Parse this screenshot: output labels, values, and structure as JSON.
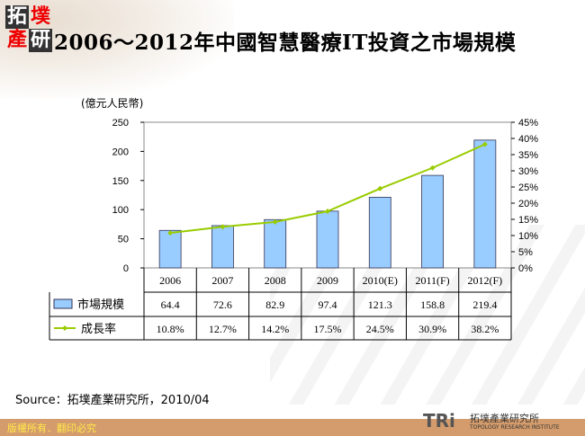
{
  "logo": {
    "chars": [
      "拓",
      "墣",
      "產",
      "研"
    ]
  },
  "header": {
    "title": "2006～2012年中國智慧醫療IT投資之市場規模"
  },
  "chart_data": {
    "type": "bar+line",
    "ylabel": "(億元人民幣)",
    "categories": [
      "2006",
      "2007",
      "2008",
      "2009",
      "2010(E)",
      "2011(F)",
      "2012(F)"
    ],
    "ylim": [
      0,
      250
    ],
    "yticks": [
      0,
      50,
      100,
      150,
      200,
      250
    ],
    "y2lim": [
      0,
      45
    ],
    "y2ticks": [
      "0%",
      "5%",
      "10%",
      "15%",
      "20%",
      "25%",
      "30%",
      "35%",
      "40%",
      "45%"
    ],
    "series": [
      {
        "name": "市場規模",
        "type": "bar",
        "color": "#99ccff",
        "values": [
          64.4,
          72.6,
          82.9,
          97.4,
          121.3,
          158.8,
          219.4
        ],
        "labels": [
          "64.4",
          "72.6",
          "82.9",
          "97.4",
          "121.3",
          "158.8",
          "219.4"
        ]
      },
      {
        "name": "成長率",
        "type": "line",
        "axis": "right",
        "color": "#99cc00",
        "values": [
          10.8,
          12.7,
          14.2,
          17.5,
          24.5,
          30.9,
          38.2
        ],
        "labels": [
          "10.8%",
          "12.7%",
          "14.2%",
          "17.5%",
          "24.5%",
          "30.9%",
          "38.2%"
        ]
      }
    ],
    "legend": "table-left"
  },
  "source": "Source：拓墣產業研究所，2010/04",
  "footer": {
    "copyright": "版權所有．翻印必究",
    "brand": "TRi",
    "brand_cn": "拓墣產業研究所",
    "brand_en": "TOPOLOGY RESEARCH INSTITUTE"
  }
}
